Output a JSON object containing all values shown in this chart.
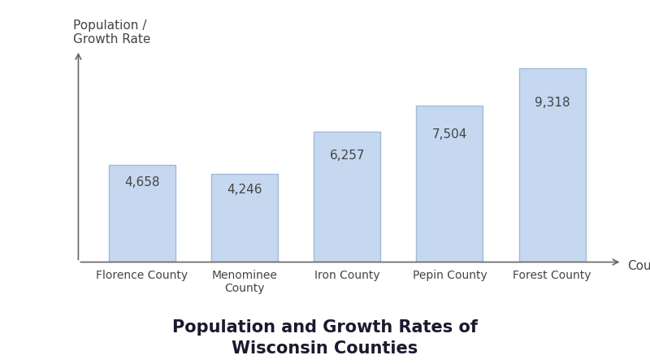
{
  "categories": [
    "Florence County",
    "Menominee\nCounty",
    "Iron County",
    "Pepin County",
    "Forest County"
  ],
  "values": [
    4658,
    4246,
    6257,
    7504,
    9318
  ],
  "labels": [
    "4,658",
    "4,246",
    "6,257",
    "7,504",
    "9,318"
  ],
  "bar_color": "#c5d8f0",
  "bar_edge_color": "#a0bbd8",
  "title_line1": "Population and Growth Rates of",
  "title_line2": "Wisconsin Counties",
  "ylabel": "Population /\nGrowth Rate",
  "xlabel": "County",
  "ylim": [
    0,
    10500
  ],
  "bar_width": 0.65,
  "label_fontsize": 11,
  "title_fontsize": 15,
  "axis_label_fontsize": 11,
  "tick_label_fontsize": 10,
  "background_color": "#ffffff",
  "arrow_color": "#666666",
  "text_color": "#444444"
}
